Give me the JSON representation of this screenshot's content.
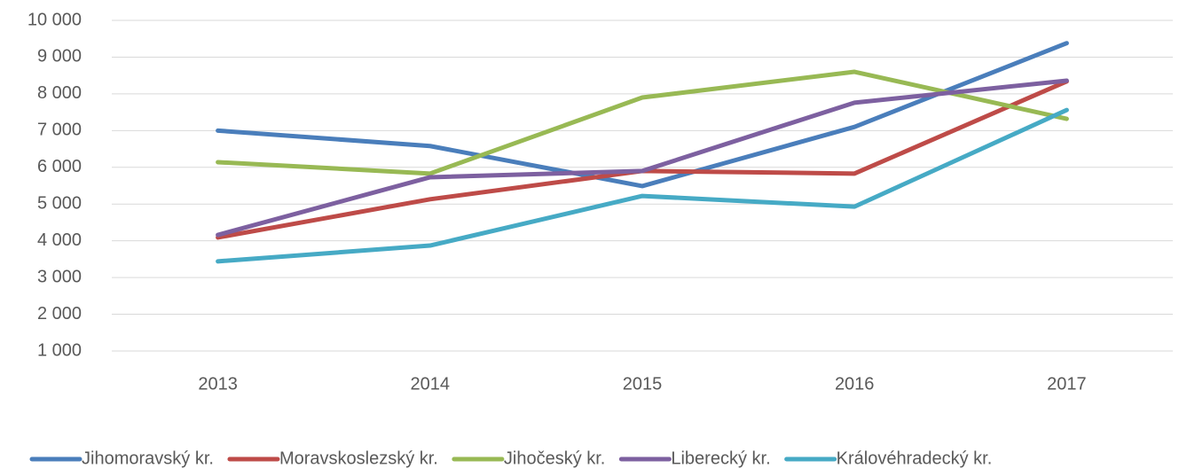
{
  "chart_data": {
    "type": "line",
    "categories": [
      "2013",
      "2014",
      "2015",
      "2016",
      "2017"
    ],
    "series": [
      {
        "name": "Jihomoravský kr.",
        "color": "#4a7ebb",
        "values": [
          7000,
          6580,
          5490,
          7100,
          9380
        ]
      },
      {
        "name": "Moravskoslezský kr.",
        "color": "#be4b48",
        "values": [
          4090,
          5130,
          5900,
          5830,
          8340
        ]
      },
      {
        "name": "Jihočeský kr.",
        "color": "#98b954",
        "values": [
          6140,
          5830,
          7900,
          8600,
          7320
        ]
      },
      {
        "name": "Liberecký kr.",
        "color": "#7d60a0",
        "values": [
          4160,
          5730,
          5900,
          7760,
          8360
        ]
      },
      {
        "name": "Královéhradecký kr.",
        "color": "#46aac5",
        "values": [
          3440,
          3870,
          5220,
          4930,
          7560
        ]
      }
    ],
    "ylim": [
      1000,
      10000
    ],
    "yticks": [
      {
        "value": 1000,
        "label": "1 000"
      },
      {
        "value": 2000,
        "label": "2 000"
      },
      {
        "value": 3000,
        "label": "3 000"
      },
      {
        "value": 4000,
        "label": "4 000"
      },
      {
        "value": 5000,
        "label": "5 000"
      },
      {
        "value": 6000,
        "label": "6 000"
      },
      {
        "value": 7000,
        "label": "7 000"
      },
      {
        "value": 8000,
        "label": "8 000"
      },
      {
        "value": 9000,
        "label": "9 000"
      },
      {
        "value": 10000,
        "label": "10 000"
      }
    ],
    "grid": true,
    "legend": "bottom"
  }
}
